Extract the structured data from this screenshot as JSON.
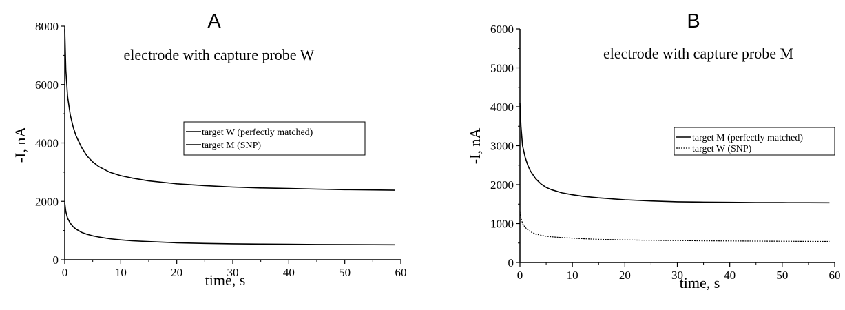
{
  "chart_data": [
    {
      "type": "line",
      "panel": "A",
      "subtitle": "electrode with capture probe W",
      "xlabel": "time, s",
      "ylabel": "-I, nA",
      "xlim": [
        0,
        60
      ],
      "ylim": [
        0,
        8000
      ],
      "xticks": [
        "0",
        "10",
        "20",
        "30",
        "40",
        "50",
        "60"
      ],
      "yticks": [
        "0",
        "2000",
        "4000",
        "6000",
        "8000"
      ],
      "grid": false,
      "legend_position": "center-right",
      "series": [
        {
          "name": "target W (perfectly matched)",
          "color": "#000000",
          "dash": "solid",
          "x": [
            0,
            0.2,
            0.5,
            1,
            1.5,
            2,
            3,
            4,
            5,
            6,
            8,
            10,
            12,
            15,
            20,
            25,
            30,
            35,
            40,
            45,
            50,
            55,
            59
          ],
          "y": [
            7900,
            6500,
            5600,
            4950,
            4550,
            4250,
            3850,
            3550,
            3350,
            3200,
            3000,
            2880,
            2800,
            2700,
            2600,
            2540,
            2490,
            2460,
            2440,
            2420,
            2400,
            2390,
            2380
          ]
        },
        {
          "name": "target M (SNP)",
          "color": "#000000",
          "dash": "solid",
          "x": [
            0,
            0.2,
            0.5,
            1,
            1.5,
            2,
            3,
            4,
            5,
            6,
            8,
            10,
            12,
            15,
            20,
            25,
            30,
            35,
            40,
            45,
            50,
            55,
            59
          ],
          "y": [
            1950,
            1650,
            1420,
            1250,
            1130,
            1050,
            940,
            870,
            820,
            780,
            720,
            680,
            650,
            620,
            580,
            560,
            545,
            535,
            528,
            522,
            518,
            515,
            512
          ]
        }
      ]
    },
    {
      "type": "line",
      "panel": "B",
      "subtitle": "electrode with capture probe M",
      "xlabel": "time, s",
      "ylabel": "-I, nA",
      "xlim": [
        0,
        60
      ],
      "ylim": [
        0,
        6000
      ],
      "xticks": [
        "0",
        "10",
        "20",
        "30",
        "40",
        "50",
        "60"
      ],
      "yticks": [
        "0",
        "1000",
        "2000",
        "3000",
        "4000",
        "5000",
        "6000"
      ],
      "grid": false,
      "legend_position": "center-right",
      "series": [
        {
          "name": "target M (perfectly matched)",
          "color": "#000000",
          "dash": "solid",
          "x": [
            0,
            0.2,
            0.5,
            1,
            1.5,
            2,
            3,
            4,
            5,
            6,
            8,
            10,
            12,
            15,
            20,
            25,
            30,
            35,
            40,
            45,
            50,
            55,
            59
          ],
          "y": [
            4100,
            3500,
            3000,
            2700,
            2500,
            2350,
            2150,
            2020,
            1930,
            1870,
            1790,
            1740,
            1700,
            1660,
            1610,
            1580,
            1560,
            1550,
            1545,
            1540,
            1538,
            1536,
            1535
          ]
        },
        {
          "name": "target W (SNP)",
          "color": "#000000",
          "dash": "dotted",
          "x": [
            0,
            0.2,
            0.5,
            1,
            1.5,
            2,
            3,
            4,
            5,
            6,
            8,
            10,
            12,
            15,
            20,
            25,
            30,
            35,
            40,
            45,
            50,
            55,
            59
          ],
          "y": [
            1300,
            1150,
            1000,
            900,
            840,
            790,
            730,
            700,
            675,
            660,
            640,
            625,
            610,
            595,
            580,
            570,
            562,
            556,
            552,
            548,
            545,
            542,
            540
          ]
        }
      ]
    }
  ]
}
